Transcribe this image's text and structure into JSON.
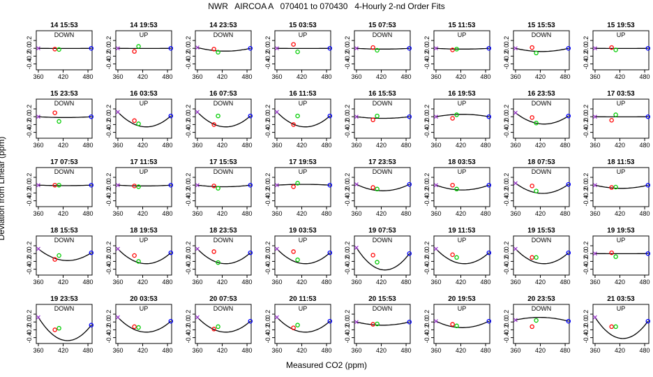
{
  "title": "NWR   AIRCOA A   070401 to 070430   4-Hourly 2-nd Order Fits",
  "ylabel": "Deviation from Linear (ppm)",
  "xlabel": "Measured CO2 (ppm)",
  "colors": {
    "curve": "#000000",
    "red": "#ff0000",
    "green": "#00cc00",
    "blue": "#0000ff",
    "purple": "#9933cc"
  },
  "chart_data": {
    "type": "scatter",
    "panel_xlim": [
      355,
      490
    ],
    "panel_ylim": [
      -0.55,
      0.45
    ],
    "x_ticks": [
      "360",
      "420",
      "480"
    ],
    "y_ticks": [
      "0.2",
      "0.0",
      "-0.2",
      "-0.4"
    ],
    "standard_x": [
      360,
      400,
      410,
      488
    ],
    "panels": [
      {
        "title": "14 15:53",
        "label": "DOWN",
        "a": 1e-06,
        "y": [
          0.0,
          -0.02,
          -0.03,
          0.0
        ]
      },
      {
        "title": "14 19:53",
        "label": "UP",
        "a": 1e-06,
        "y": [
          0.0,
          -0.08,
          0.05,
          0.0
        ]
      },
      {
        "title": "14 23:53",
        "label": "DOWN",
        "a": 2e-05,
        "y": [
          0.02,
          -0.02,
          -0.1,
          0.0
        ]
      },
      {
        "title": "15 03:53",
        "label": "UP",
        "a": 1e-06,
        "y": [
          0.0,
          0.1,
          -0.09,
          0.0
        ]
      },
      {
        "title": "15 07:53",
        "label": "DOWN",
        "a": 5e-06,
        "y": [
          0.0,
          0.02,
          -0.05,
          0.0
        ]
      },
      {
        "title": "15 11:53",
        "label": "UP",
        "a": 5e-06,
        "y": [
          0.0,
          -0.04,
          -0.02,
          0.0
        ]
      },
      {
        "title": "15 15:53",
        "label": "DOWN",
        "a": 2e-05,
        "y": [
          0.0,
          0.02,
          -0.12,
          0.0
        ]
      },
      {
        "title": "15 19:53",
        "label": "UP",
        "a": 1e-06,
        "y": [
          0.0,
          0.02,
          -0.04,
          0.0
        ]
      },
      {
        "title": "15 23:53",
        "label": "DOWN",
        "a": 5e-06,
        "y": [
          0.0,
          0.1,
          -0.12,
          0.0
        ]
      },
      {
        "title": "16 03:53",
        "label": "UP",
        "a": 8e-05,
        "y": [
          0.12,
          -0.1,
          -0.18,
          0.02
        ]
      },
      {
        "title": "16 07:53",
        "label": "DOWN",
        "a": 8e-05,
        "y": [
          0.12,
          -0.2,
          0.02,
          0.02
        ]
      },
      {
        "title": "16 11:53",
        "label": "UP",
        "a": 8e-05,
        "y": [
          0.12,
          -0.2,
          0.02,
          0.02
        ]
      },
      {
        "title": "16 15:53",
        "label": "DOWN",
        "a": 1e-05,
        "y": [
          0.0,
          -0.08,
          0.02,
          0.0
        ]
      },
      {
        "title": "16 19:53",
        "label": "UP",
        "a": -1.5e-05,
        "y": [
          0.0,
          -0.04,
          0.05,
          0.0
        ]
      },
      {
        "title": "16 23:53",
        "label": "DOWN",
        "a": 6e-05,
        "y": [
          0.1,
          -0.02,
          -0.16,
          0.02
        ]
      },
      {
        "title": "17 03:53",
        "label": "UP",
        "a": 1e-06,
        "y": [
          0.0,
          -0.09,
          0.05,
          0.0
        ]
      },
      {
        "title": "17 07:53",
        "label": "DOWN",
        "a": 3e-06,
        "y": [
          0.0,
          0.0,
          0.0,
          0.0
        ]
      },
      {
        "title": "17 11:53",
        "label": "UP",
        "a": 5e-06,
        "y": [
          0.0,
          -0.02,
          -0.04,
          0.0
        ]
      },
      {
        "title": "17 15:53",
        "label": "DOWN",
        "a": 1e-05,
        "y": [
          0.0,
          -0.02,
          -0.08,
          0.0
        ]
      },
      {
        "title": "17 19:53",
        "label": "UP",
        "a": -5e-06,
        "y": [
          0.0,
          -0.04,
          0.05,
          0.0
        ]
      },
      {
        "title": "17 23:53",
        "label": "DOWN",
        "a": 4e-05,
        "y": [
          0.02,
          -0.06,
          -0.1,
          0.02
        ]
      },
      {
        "title": "18 03:53",
        "label": "UP",
        "a": 3e-05,
        "y": [
          0.0,
          0.0,
          -0.1,
          0.0
        ]
      },
      {
        "title": "18 07:53",
        "label": "DOWN",
        "a": 6e-05,
        "y": [
          0.05,
          -0.02,
          -0.15,
          0.02
        ]
      },
      {
        "title": "18 11:53",
        "label": "UP",
        "a": 2e-05,
        "y": [
          0.0,
          -0.06,
          -0.05,
          0.0
        ]
      },
      {
        "title": "18 15:53",
        "label": "DOWN",
        "a": 6e-05,
        "y": [
          0.12,
          -0.15,
          -0.05,
          0.02
        ]
      },
      {
        "title": "18 19:53",
        "label": "UP",
        "a": 8e-05,
        "y": [
          0.12,
          -0.05,
          -0.2,
          0.02
        ]
      },
      {
        "title": "18 23:53",
        "label": "DOWN",
        "a": 8e-05,
        "y": [
          0.12,
          0.05,
          -0.23,
          0.02
        ]
      },
      {
        "title": "19 03:53",
        "label": "UP",
        "a": 8e-05,
        "y": [
          0.12,
          0.05,
          -0.16,
          0.02
        ]
      },
      {
        "title": "19 07:53",
        "label": "DOWN",
        "a": 0.00012,
        "y": [
          0.15,
          -0.04,
          -0.22,
          0.0
        ]
      },
      {
        "title": "19 11:53",
        "label": "UP",
        "a": 8e-05,
        "y": [
          0.12,
          -0.03,
          -0.1,
          0.02
        ]
      },
      {
        "title": "19 15:53",
        "label": "DOWN",
        "a": 8e-05,
        "y": [
          0.12,
          -0.1,
          -0.1,
          0.02
        ]
      },
      {
        "title": "19 19:53",
        "label": "UP",
        "a": 1e-06,
        "y": [
          0.0,
          0.02,
          -0.08,
          0.0
        ]
      },
      {
        "title": "19 23:53",
        "label": "DOWN",
        "a": 0.00012,
        "y": [
          0.12,
          -0.2,
          -0.16,
          -0.08
        ]
      },
      {
        "title": "20 03:53",
        "label": "UP",
        "a": 8e-05,
        "y": [
          0.12,
          -0.12,
          -0.14,
          0.02
        ]
      },
      {
        "title": "20 07:53",
        "label": "DOWN",
        "a": 8e-05,
        "y": [
          0.12,
          -0.18,
          -0.12,
          0.02
        ]
      },
      {
        "title": "20 11:53",
        "label": "UP",
        "a": 8e-05,
        "y": [
          0.12,
          -0.15,
          -0.08,
          0.02
        ]
      },
      {
        "title": "20 15:53",
        "label": "DOWN",
        "a": 2e-05,
        "y": [
          0.0,
          -0.06,
          -0.05,
          0.0
        ]
      },
      {
        "title": "20 19:53",
        "label": "UP",
        "a": 4e-05,
        "y": [
          0.02,
          -0.06,
          -0.1,
          0.02
        ]
      },
      {
        "title": "20 23:53",
        "label": "DOWN",
        "a": -2e-05,
        "y": [
          0.05,
          -0.12,
          0.04,
          0.02
        ]
      },
      {
        "title": "21 03:53",
        "label": "UP",
        "a": 0.00012,
        "y": [
          0.12,
          -0.12,
          -0.12,
          0.02
        ]
      }
    ]
  }
}
